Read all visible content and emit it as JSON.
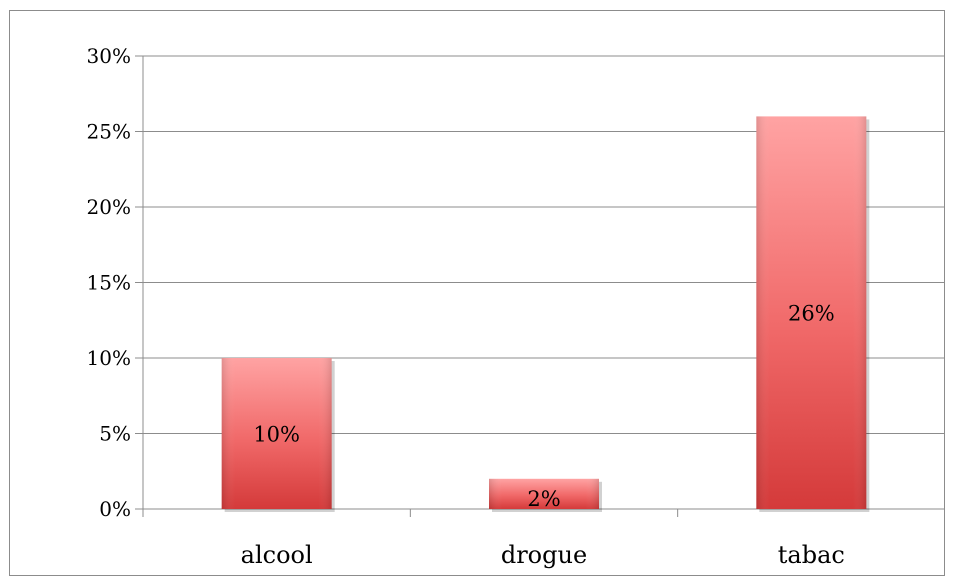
{
  "chart_data": {
    "type": "bar",
    "categories": [
      "alcool",
      "drogue",
      "tabac"
    ],
    "values": [
      10,
      2,
      26
    ],
    "data_labels": [
      "10%",
      "2%",
      "26%"
    ],
    "y_ticks": [
      0,
      5,
      10,
      15,
      20,
      25,
      30
    ],
    "y_tick_labels": [
      "0%",
      "5%",
      "10%",
      "15%",
      "20%",
      "25%",
      "30%"
    ],
    "ylim": [
      0,
      30
    ],
    "title": "",
    "xlabel": "",
    "ylabel": "",
    "grid": true,
    "legend": "none",
    "colors": {
      "bar_light": "#ffa3a3",
      "bar_mid": "#f06868",
      "bar_dark": "#d43a3a",
      "grid": "#8c8c8c"
    }
  }
}
